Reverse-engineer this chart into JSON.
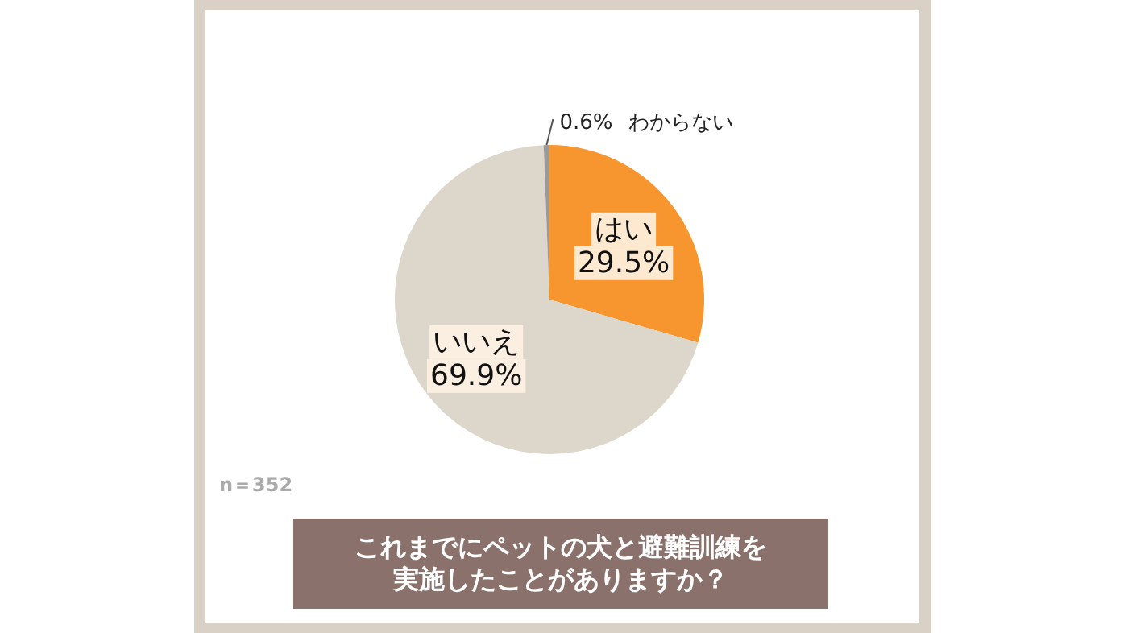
{
  "chart_data": {
    "type": "pie",
    "title": "これまでにペットの犬と避難訓練を実施したことがありますか？",
    "categories": [
      "はい",
      "いいえ",
      "わからない"
    ],
    "values": [
      29.5,
      69.9,
      0.6
    ],
    "colors": [
      "#f7962f",
      "#ddd6ca",
      "#9a9a9a"
    ],
    "value_labels": [
      "29.5%",
      "69.9%",
      "0.6%"
    ],
    "annotations": [
      "n＝352"
    ]
  }
}
